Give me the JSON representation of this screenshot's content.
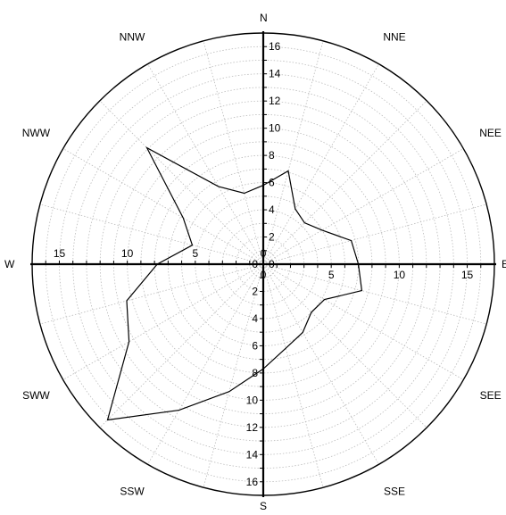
{
  "chart_data": {
    "type": "radar",
    "title": "",
    "directions": [
      "N",
      "NNE",
      "NEE",
      "E",
      "SEE",
      "SSE",
      "S",
      "SSW",
      "SWW",
      "W",
      "NWW",
      "NNW"
    ],
    "direction_angles_deg": [
      0,
      30,
      60,
      90,
      120,
      150,
      180,
      210,
      240,
      270,
      300,
      330
    ],
    "radial_range": [
      0,
      17
    ],
    "radial_ticks_vertical": [
      0,
      2,
      4,
      6,
      8,
      10,
      12,
      14,
      16
    ],
    "radial_ticks_horizontal": [
      0,
      5,
      10,
      15
    ],
    "grid": true,
    "series": [
      {
        "points": [
          {
            "angle_deg": 0,
            "value": 5.8
          },
          {
            "angle_deg": 15,
            "value": 7.1
          },
          {
            "angle_deg": 30,
            "value": 4.7
          },
          {
            "angle_deg": 45,
            "value": 4.3
          },
          {
            "angle_deg": 60,
            "value": 5.0
          },
          {
            "angle_deg": 75,
            "value": 6.7
          },
          {
            "angle_deg": 90,
            "value": 7.0
          },
          {
            "angle_deg": 105,
            "value": 7.5
          },
          {
            "angle_deg": 120,
            "value": 5.2
          },
          {
            "angle_deg": 135,
            "value": 5.0
          },
          {
            "angle_deg": 150,
            "value": 5.8
          },
          {
            "angle_deg": 165,
            "value": 6.4
          },
          {
            "angle_deg": 180,
            "value": 7.7
          },
          {
            "angle_deg": 195,
            "value": 9.7
          },
          {
            "angle_deg": 210,
            "value": 12.4
          },
          {
            "angle_deg": 225,
            "value": 16.2
          },
          {
            "angle_deg": 240,
            "value": 11.4
          },
          {
            "angle_deg": 255,
            "value": 10.4
          },
          {
            "angle_deg": 270,
            "value": 7.8
          },
          {
            "angle_deg": 285,
            "value": 5.4
          },
          {
            "angle_deg": 300,
            "value": 6.8
          },
          {
            "angle_deg": 315,
            "value": 12.1
          },
          {
            "angle_deg": 330,
            "value": 6.6
          },
          {
            "angle_deg": 345,
            "value": 5.4
          }
        ]
      }
    ]
  }
}
